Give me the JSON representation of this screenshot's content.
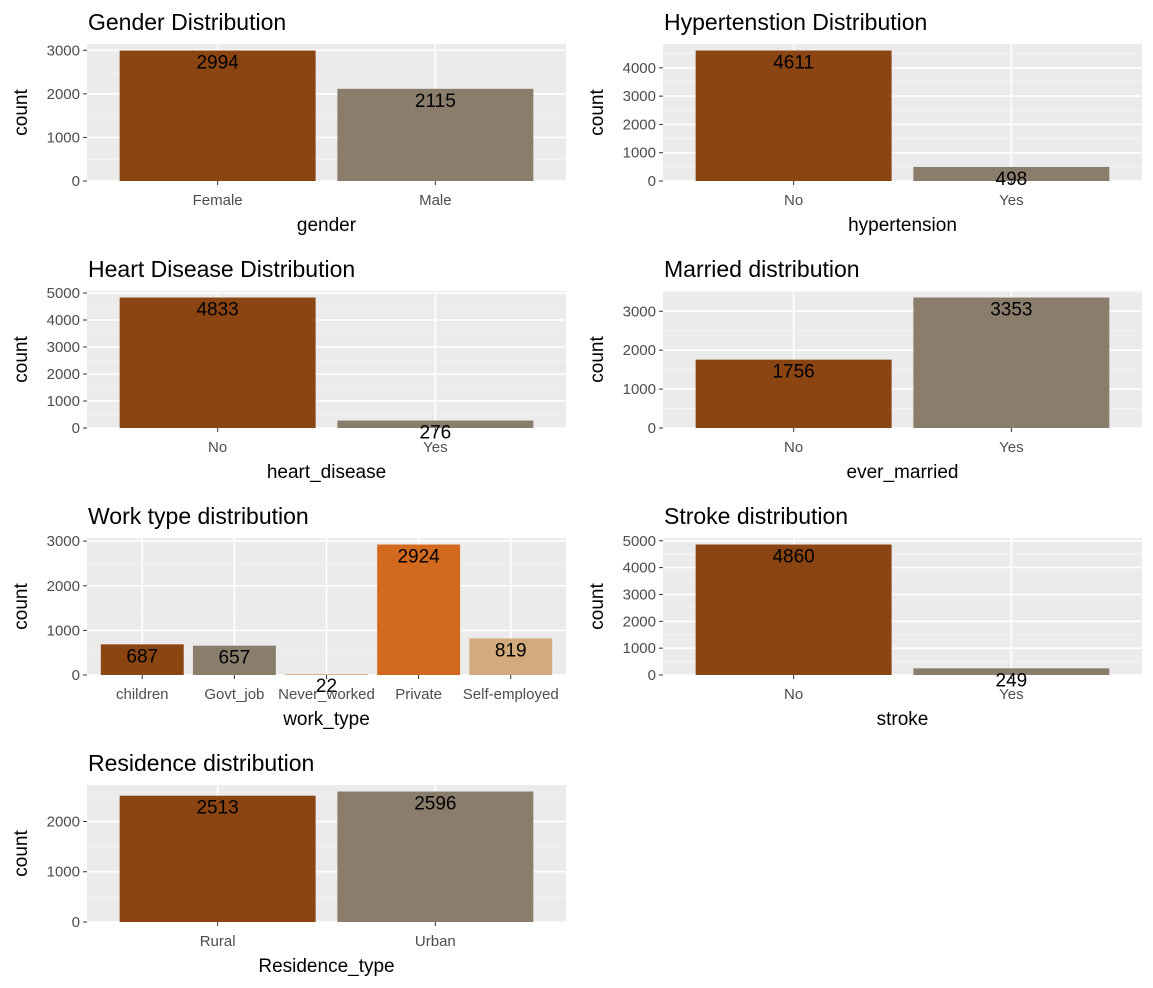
{
  "chart_data": [
    {
      "type": "bar",
      "title": "Gender Distribution",
      "xlabel": "gender",
      "ylabel": "count",
      "categories": [
        "Female",
        "Male"
      ],
      "values": [
        2994,
        2115
      ],
      "colors": [
        "#8B4513",
        "#8B7D6B"
      ],
      "yticks": [
        0,
        1000,
        2000,
        3000
      ],
      "ylim": [
        0,
        3143.7
      ]
    },
    {
      "type": "bar",
      "title": "Hypertenstion Distribution",
      "xlabel": "hypertension",
      "ylabel": "count",
      "categories": [
        "No",
        "Yes"
      ],
      "values": [
        4611,
        498
      ],
      "colors": [
        "#8B4513",
        "#8B7D6B"
      ],
      "yticks": [
        0,
        1000,
        2000,
        3000,
        4000
      ],
      "ylim": [
        0,
        4841.55
      ]
    },
    {
      "type": "bar",
      "title": "Heart Disease Distribution",
      "xlabel": "heart_disease",
      "ylabel": "count",
      "categories": [
        "No",
        "Yes"
      ],
      "values": [
        4833,
        276
      ],
      "colors": [
        "#8B4513",
        "#8B7D6B"
      ],
      "yticks": [
        0,
        1000,
        2000,
        3000,
        4000,
        5000
      ],
      "ylim": [
        0,
        5074.65
      ]
    },
    {
      "type": "bar",
      "title": "Married distribution",
      "xlabel": "ever_married",
      "ylabel": "count",
      "categories": [
        "No",
        "Yes"
      ],
      "values": [
        1756,
        3353
      ],
      "colors": [
        "#8B4513",
        "#8B7D6B"
      ],
      "yticks": [
        0,
        1000,
        2000,
        3000
      ],
      "ylim": [
        0,
        3520.65
      ]
    },
    {
      "type": "bar",
      "title": "Work type distribution",
      "xlabel": "work_type",
      "ylabel": "count",
      "categories": [
        "children",
        "Govt_job",
        "Never_worked",
        "Private",
        "Self-employed"
      ],
      "values": [
        687,
        657,
        22,
        2924,
        819
      ],
      "colors": [
        "#8B4513",
        "#8B7D6B",
        "#D2B48C",
        "#D2691E",
        "#D2AA7D"
      ],
      "yticks": [
        0,
        1000,
        2000,
        3000
      ],
      "ylim": [
        0,
        3070.2
      ]
    },
    {
      "type": "bar",
      "title": "Stroke distribution",
      "xlabel": "stroke",
      "ylabel": "count",
      "categories": [
        "No",
        "Yes"
      ],
      "values": [
        4860,
        249
      ],
      "colors": [
        "#8B4513",
        "#8B7D6B"
      ],
      "yticks": [
        0,
        1000,
        2000,
        3000,
        4000,
        5000
      ],
      "ylim": [
        0,
        5103
      ]
    },
    {
      "type": "bar",
      "title": "Residence distribution",
      "xlabel": "Residence_type",
      "ylabel": "count",
      "categories": [
        "Rural",
        "Urban"
      ],
      "values": [
        2513,
        2596
      ],
      "colors": [
        "#8B4513",
        "#8B7D6B"
      ],
      "yticks": [
        0,
        1000,
        2000
      ],
      "ylim": [
        0,
        2725.8
      ]
    }
  ]
}
